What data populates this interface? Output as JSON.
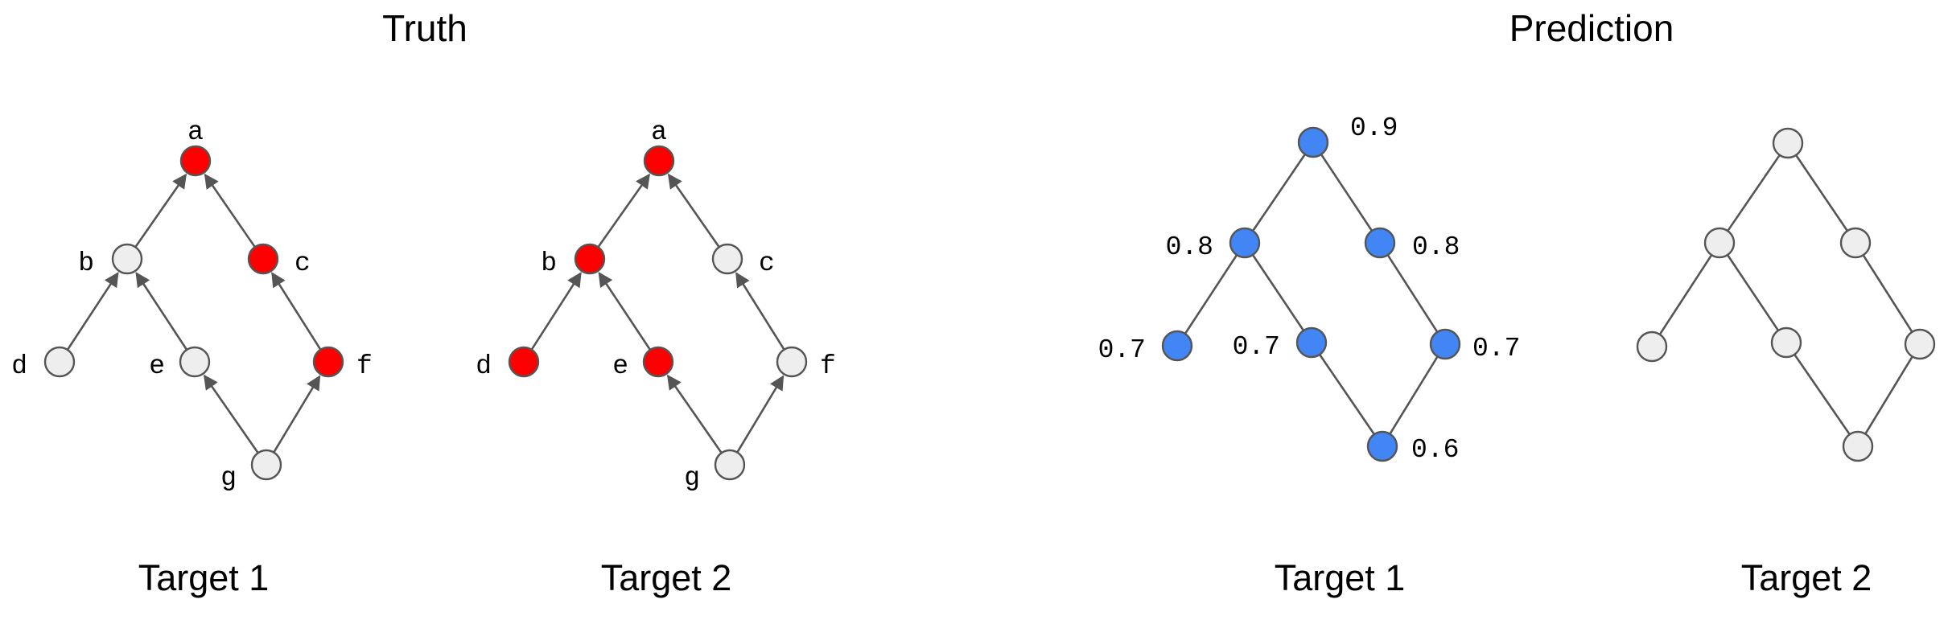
{
  "section_titles": {
    "truth": "Truth",
    "prediction": "Prediction"
  },
  "captions": {
    "truth_target_1": "Target 1",
    "truth_target_2": "Target 2",
    "prediction_target_1": "Target 1",
    "prediction_target_2": "Target 2"
  },
  "colors": {
    "highlight_truth": "#ff0000",
    "highlight_prediction": "#4285f4",
    "node_default": "#eeeeee",
    "node_stroke": "#555555",
    "edge": "#555555"
  },
  "truth_node_labels": {
    "a": "a",
    "b": "b",
    "c": "c",
    "d": "d",
    "e": "e",
    "f": "f",
    "g": "g"
  },
  "truth_target_1": {
    "highlighted": [
      "a",
      "c",
      "f"
    ]
  },
  "truth_target_2": {
    "highlighted": [
      "a",
      "b",
      "d",
      "e"
    ]
  },
  "prediction_target_1": {
    "scores": {
      "a": "0.9",
      "b": "0.8",
      "c": "0.8",
      "d": "0.7",
      "e": "0.7",
      "f": "0.7",
      "g": "0.6"
    },
    "highlighted": [
      "a",
      "b",
      "c",
      "d",
      "e",
      "f",
      "g"
    ]
  },
  "prediction_target_2": {
    "highlighted": []
  }
}
